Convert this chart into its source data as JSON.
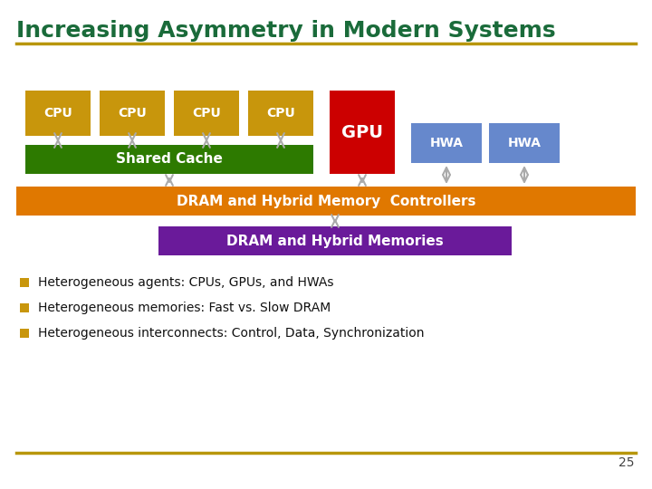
{
  "title": "Increasing Asymmetry in Modern Systems",
  "title_color": "#1a6b3a",
  "title_fontsize": 18,
  "background_color": "#ffffff",
  "line_color": "#b8960c",
  "cpu_color": "#c8960c",
  "cpu_text_color": "#ffffff",
  "shared_cache_color": "#2d7a00",
  "shared_cache_text_color": "#ffffff",
  "gpu_color": "#cc0000",
  "gpu_text_color": "#ffffff",
  "hwa_color": "#6688cc",
  "hwa_text_color": "#ffffff",
  "dram_ctrl_color": "#e07800",
  "dram_ctrl_text_color": "#ffffff",
  "dram_mem_color": "#6a1a9a",
  "dram_mem_text_color": "#ffffff",
  "arrow_color": "#aaaaaa",
  "bullet_color": "#c8960c",
  "bullet_texts": [
    "Heterogeneous agents: CPUs, GPUs, and HWAs",
    "Heterogeneous memories: Fast vs. Slow DRAM",
    "Heterogeneous interconnects: Control, Data, Synchronization"
  ],
  "page_number": "25"
}
